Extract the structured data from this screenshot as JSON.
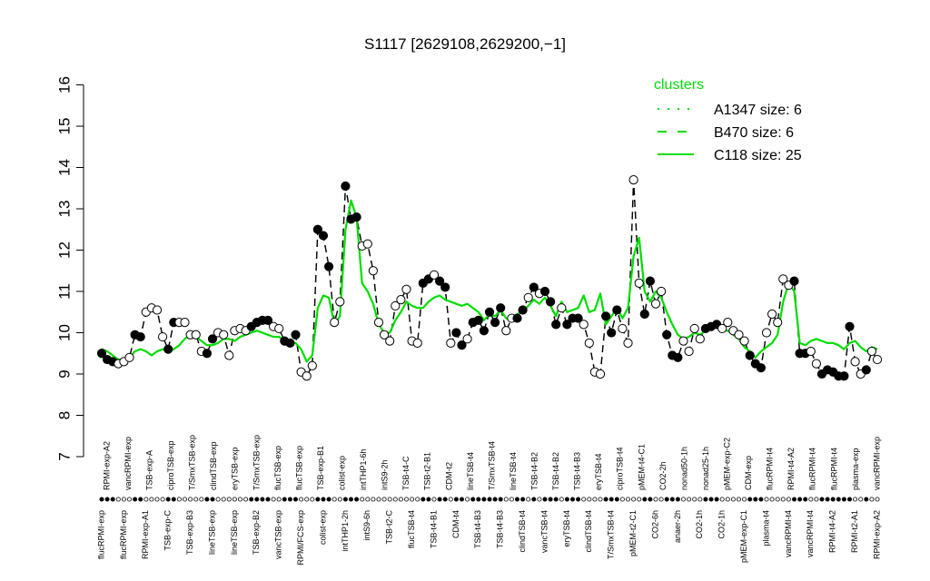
{
  "chart_data": {
    "type": "line",
    "title": "S1117 [2629108,2629200,−1]",
    "xlabel": "",
    "ylabel": "",
    "ylim": [
      7,
      16
    ],
    "yticks": [
      7,
      8,
      9,
      10,
      11,
      12,
      13,
      14,
      15,
      16
    ],
    "grid": false,
    "legend": {
      "title": "clusters",
      "placement": "top-right",
      "color": "#00dd00",
      "entries": [
        {
          "label": "A1347 size: 6",
          "style": "dotted"
        },
        {
          "label": "B470 size: 6",
          "style": "dashed"
        },
        {
          "label": "C118 size: 25",
          "style": "solid"
        }
      ]
    },
    "x_labels_bottom": [
      "flucRPMI-exp",
      "flucRPMI-exp",
      "RPMI-exp-A1",
      "TSB-exp-C",
      "TSB-exp-B3",
      "lineTSB-exp",
      "lineTSB-exp",
      "TSB-exp-B2",
      "vancTSB-exp",
      "RPMI/FCS-exp",
      "colist-exp",
      "intTHP1-2h",
      "intS9-6h",
      "TSB-t2-C",
      "flucTSB-t4",
      "TSB-t4-B1",
      "CDM-t4",
      "TSB-t4-B3",
      "TSB-t4-B3",
      "clindTSB-t4",
      "vancTSB-t4",
      "eryTSB-t4",
      "clindTSB-t4",
      "T/SmxTSB-t4",
      "pMEM-t2-C1",
      "CO2-6h",
      "anaer-2h",
      "CO2-1h",
      "CO2-1h",
      "pMEM-exp-C1",
      "plasma-t4",
      "vancRPMI-t4",
      "vancRPMI-t4",
      "RPMI-t4-A2",
      "RPMI-t2-A1",
      "RPMI-exp-A2"
    ],
    "x_labels_top": [
      "RPMI-exp-A2",
      "vancRPMI-exp",
      "TSB-exp-A",
      "ciproTSB-exp",
      "T/SmxTSB-exp",
      "clindTSB-exp",
      "eryTSB-exp",
      "T/SmxTSB-exp",
      "flucTSB-exp",
      "flucTSB-exp",
      "TSB-exp-B1",
      "colist-exp",
      "intTHP1-6h",
      "intS9-2h",
      "TSB-t4-C",
      "TSB-t2-B1",
      "CDM-t2",
      "lineTSB-t4",
      "T/SmxTSB-t4",
      "lineTSB-t4",
      "TSB-t4-B2",
      "TSB-t4-B2",
      "TSB-t4-B3",
      "eryTSB-t4",
      "ciproTSB-t4",
      "pMEM-t4-C1",
      "CO2-2h",
      "nonad50-1h",
      "nonad25-1h",
      "pMEM-exp-C2",
      "CDM-exp",
      "flucRPMI-t4",
      "RPMI-t4-A2",
      "flucRPMI-t4",
      "flucRPMI-t4",
      "plasma-exp",
      "vancRPMI-exp"
    ],
    "series": [
      {
        "name": "A1347 size: 6",
        "style": "dotted",
        "values": [
          9.5,
          9.35,
          9.3,
          9.25,
          9.3,
          9.4,
          9.95,
          9.9,
          10.5,
          10.6,
          10.55,
          9.9,
          9.6,
          10.25,
          10.25,
          10.25,
          9.95,
          9.95,
          9.55,
          9.5,
          9.85,
          10.0,
          9.95,
          9.45,
          10.05,
          10.1,
          10.05,
          10.15,
          10.25,
          10.3,
          10.3,
          10.15,
          10.1,
          9.8,
          9.75,
          9.95,
          9.05,
          8.95,
          9.2,
          12.5,
          12.35,
          11.6,
          10.25,
          10.75,
          13.55,
          12.75,
          12.8,
          12.1,
          12.15,
          11.5,
          10.25,
          9.95,
          9.8,
          10.65,
          10.8,
          11.05,
          9.8,
          9.75,
          11.2,
          11.3,
          11.4,
          11.25,
          11.1,
          9.75,
          10.0,
          9.7,
          9.85,
          10.25,
          10.3,
          10.05,
          10.5,
          10.25,
          10.6,
          10.05,
          10.35,
          10.35,
          10.55,
          10.85,
          11.1,
          10.95,
          11.0,
          10.75,
          10.2,
          10.6,
          10.2,
          10.35,
          10.35,
          10.2,
          9.75,
          9.05,
          9.0,
          10.4,
          10.0,
          10.55,
          10.1,
          9.75,
          13.7,
          11.2,
          10.45,
          11.25,
          10.7,
          11.0,
          9.95,
          9.45,
          9.4,
          9.8,
          9.55,
          10.1,
          9.85,
          10.1,
          10.15,
          10.2,
          10.1,
          10.25,
          10.05,
          9.95,
          9.8,
          9.45,
          9.25,
          9.15,
          10.0,
          10.45,
          10.25,
          11.3,
          11.15,
          11.25,
          9.5,
          9.5,
          9.55,
          9.25,
          9.0,
          9.1,
          9.05,
          8.95,
          8.95,
          10.15,
          9.3,
          9.0,
          9.1,
          9.55,
          9.35
        ]
      },
      {
        "name": "B470 size: 6",
        "style": "dashed",
        "values": [
          9.5,
          9.35,
          9.3,
          9.25,
          9.3,
          9.4,
          9.95,
          9.9,
          10.5,
          10.6,
          10.55,
          9.9,
          9.6,
          10.25,
          10.25,
          10.25,
          9.95,
          9.95,
          9.55,
          9.5,
          9.85,
          10.0,
          9.95,
          9.45,
          10.05,
          10.1,
          10.05,
          10.15,
          10.25,
          10.3,
          10.3,
          10.15,
          10.1,
          9.8,
          9.75,
          9.95,
          9.05,
          8.95,
          9.2,
          12.5,
          12.35,
          11.6,
          10.25,
          10.75,
          13.55,
          12.75,
          12.8,
          12.1,
          12.15,
          11.5,
          10.25,
          9.95,
          9.8,
          10.65,
          10.8,
          11.05,
          9.8,
          9.75,
          11.2,
          11.3,
          11.4,
          11.25,
          11.1,
          9.75,
          10.0,
          9.7,
          9.85,
          10.25,
          10.3,
          10.05,
          10.5,
          10.25,
          10.6,
          10.05,
          10.35,
          10.35,
          10.55,
          10.85,
          11.1,
          10.95,
          11.0,
          10.75,
          10.2,
          10.6,
          10.2,
          10.35,
          10.35,
          10.2,
          9.75,
          9.05,
          9.0,
          10.4,
          10.0,
          10.55,
          10.1,
          9.75,
          13.7,
          11.2,
          10.45,
          11.25,
          10.7,
          11.0,
          9.95,
          9.45,
          9.4,
          9.8,
          9.55,
          10.1,
          9.85,
          10.1,
          10.15,
          10.2,
          10.1,
          10.25,
          10.05,
          9.95,
          9.8,
          9.45,
          9.25,
          9.15,
          10.0,
          10.45,
          10.25,
          11.3,
          11.15,
          11.25,
          9.5,
          9.5,
          9.55,
          9.25,
          9.0,
          9.1,
          9.05,
          8.95,
          8.95,
          10.15,
          9.3,
          9.0,
          9.1,
          9.55,
          9.35
        ]
      },
      {
        "name": "C118 size: 25",
        "style": "solid",
        "values": [
          9.6,
          9.55,
          9.45,
          9.35,
          9.35,
          9.4,
          9.55,
          9.6,
          9.55,
          9.45,
          9.55,
          9.6,
          9.55,
          9.6,
          9.7,
          9.85,
          9.95,
          9.9,
          9.8,
          9.7,
          9.7,
          9.75,
          9.85,
          9.85,
          9.8,
          9.9,
          9.95,
          10.0,
          10.05,
          10.0,
          9.95,
          9.9,
          9.9,
          9.8,
          9.75,
          9.75,
          9.6,
          9.3,
          9.45,
          10.6,
          10.9,
          10.85,
          10.2,
          10.4,
          12.5,
          13.2,
          12.8,
          11.2,
          11.0,
          10.7,
          10.2,
          10.0,
          10.0,
          10.3,
          10.5,
          10.75,
          10.65,
          10.6,
          10.6,
          10.75,
          10.85,
          10.9,
          10.8,
          10.75,
          10.7,
          10.65,
          10.7,
          10.6,
          10.5,
          10.3,
          10.45,
          10.4,
          10.55,
          10.35,
          10.35,
          10.45,
          10.5,
          10.65,
          10.8,
          10.7,
          10.85,
          10.65,
          10.4,
          10.75,
          10.5,
          10.55,
          10.6,
          10.9,
          10.5,
          10.55,
          10.95,
          10.2,
          10.4,
          10.6,
          10.35,
          10.6,
          11.85,
          12.3,
          11.0,
          10.75,
          11.0,
          10.85,
          10.5,
          10.2,
          9.95,
          9.85,
          9.9,
          10.0,
          9.95,
          10.05,
          10.1,
          10.15,
          10.05,
          10.05,
          9.95,
          9.85,
          9.65,
          9.55,
          9.4,
          9.55,
          9.65,
          9.75,
          9.95,
          10.75,
          11.2,
          11.0,
          9.75,
          9.7,
          9.8,
          9.85,
          9.8,
          9.75,
          9.75,
          9.7,
          9.6,
          9.75,
          9.8,
          9.65,
          9.55,
          9.65,
          9.6
        ]
      }
    ],
    "markers": {
      "filled": [
        0,
        1,
        2,
        6,
        7,
        12,
        13,
        19,
        20,
        27,
        28,
        29,
        30,
        33,
        34,
        35,
        39,
        40,
        41,
        44,
        45,
        46,
        58,
        59,
        61,
        62,
        64,
        65,
        67,
        68,
        69,
        70,
        71,
        72,
        75,
        76,
        78,
        80,
        81,
        82,
        84,
        85,
        86,
        91,
        92,
        93,
        98,
        99,
        102,
        103,
        104,
        109,
        110,
        111,
        117,
        118,
        119,
        125,
        126,
        127,
        130,
        131,
        132,
        133,
        134,
        135,
        138,
        142
      ]
    }
  }
}
